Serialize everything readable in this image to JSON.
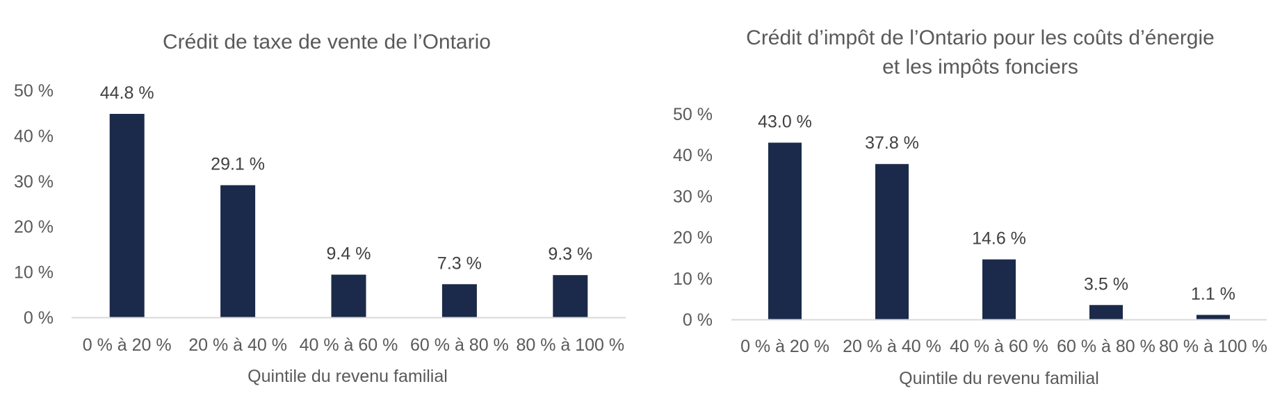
{
  "chart_data": [
    {
      "type": "bar",
      "title_lines": [
        "Crédit de taxe de vente de l’Ontario"
      ],
      "categories": [
        "0 % à 20 %",
        "20 % à 40 %",
        "40 % à 60 %",
        "60 % à 80 %",
        "80 % à 100 %"
      ],
      "values": [
        44.8,
        29.1,
        9.4,
        7.3,
        9.3
      ],
      "data_labels": [
        "44.8 %",
        "29.1 %",
        "9.4 %",
        "7.3 %",
        "9.3 %"
      ],
      "xlabel": "Quintile du revenu familial",
      "ylabel": "",
      "ylim": [
        0,
        50
      ],
      "y_ticks": [
        0,
        10,
        20,
        30,
        40,
        50
      ],
      "y_tick_labels": [
        "0 %",
        "10 %",
        "20 %",
        "30 %",
        "40 %",
        "50 %"
      ],
      "grid": false,
      "legend": "none",
      "bar_color": "#1b2a4a",
      "axis_color": "#d9d9d9"
    },
    {
      "type": "bar",
      "title_lines": [
        "Crédit d’impôt de l’Ontario pour les coûts d’énergie",
        "et les impôts fonciers"
      ],
      "categories": [
        "0 % à 20 %",
        "20 % à 40 %",
        "40 % à 60 %",
        "60 % à 80 %",
        "80 % à 100 %"
      ],
      "values": [
        43.0,
        37.8,
        14.6,
        3.5,
        1.1
      ],
      "data_labels": [
        "43.0 %",
        "37.8 %",
        "14.6 %",
        "3.5 %",
        "1.1 %"
      ],
      "xlabel": "Quintile du revenu familial",
      "ylabel": "",
      "ylim": [
        0,
        50
      ],
      "y_ticks": [
        0,
        10,
        20,
        30,
        40,
        50
      ],
      "y_tick_labels": [
        "0 %",
        "10 %",
        "20 %",
        "30 %",
        "40 %",
        "50 %"
      ],
      "grid": false,
      "legend": "none",
      "bar_color": "#1b2a4a",
      "axis_color": "#d9d9d9"
    }
  ]
}
